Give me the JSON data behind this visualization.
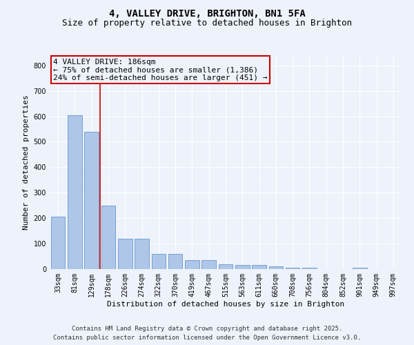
{
  "title": "4, VALLEY DRIVE, BRIGHTON, BN1 5FA",
  "subtitle": "Size of property relative to detached houses in Brighton",
  "xlabel": "Distribution of detached houses by size in Brighton",
  "ylabel": "Number of detached properties",
  "categories": [
    "33sqm",
    "81sqm",
    "129sqm",
    "178sqm",
    "226sqm",
    "274sqm",
    "322sqm",
    "370sqm",
    "419sqm",
    "467sqm",
    "515sqm",
    "563sqm",
    "611sqm",
    "660sqm",
    "708sqm",
    "756sqm",
    "804sqm",
    "852sqm",
    "901sqm",
    "949sqm",
    "997sqm"
  ],
  "values": [
    205,
    605,
    540,
    250,
    120,
    120,
    60,
    60,
    35,
    35,
    20,
    15,
    15,
    10,
    5,
    5,
    0,
    0,
    5,
    0,
    0
  ],
  "bar_color": "#aec6e8",
  "bar_edge_color": "#6699cc",
  "background_color": "#eef2fb",
  "grid_color": "#ffffff",
  "vline_x_index": 2.5,
  "vline_color": "#cc0000",
  "annotation_line1": "4 VALLEY DRIVE: 186sqm",
  "annotation_line2": "← 75% of detached houses are smaller (1,386)",
  "annotation_line3": "24% of semi-detached houses are larger (451) →",
  "annotation_box_color": "#cc0000",
  "ylim": [
    0,
    840
  ],
  "yticks": [
    0,
    100,
    200,
    300,
    400,
    500,
    600,
    700,
    800
  ],
  "footer_line1": "Contains HM Land Registry data © Crown copyright and database right 2025.",
  "footer_line2": "Contains public sector information licensed under the Open Government Licence v3.0.",
  "title_fontsize": 10,
  "subtitle_fontsize": 9,
  "tick_fontsize": 7,
  "label_fontsize": 8,
  "footer_fontsize": 6.5,
  "annotation_fontsize": 8
}
